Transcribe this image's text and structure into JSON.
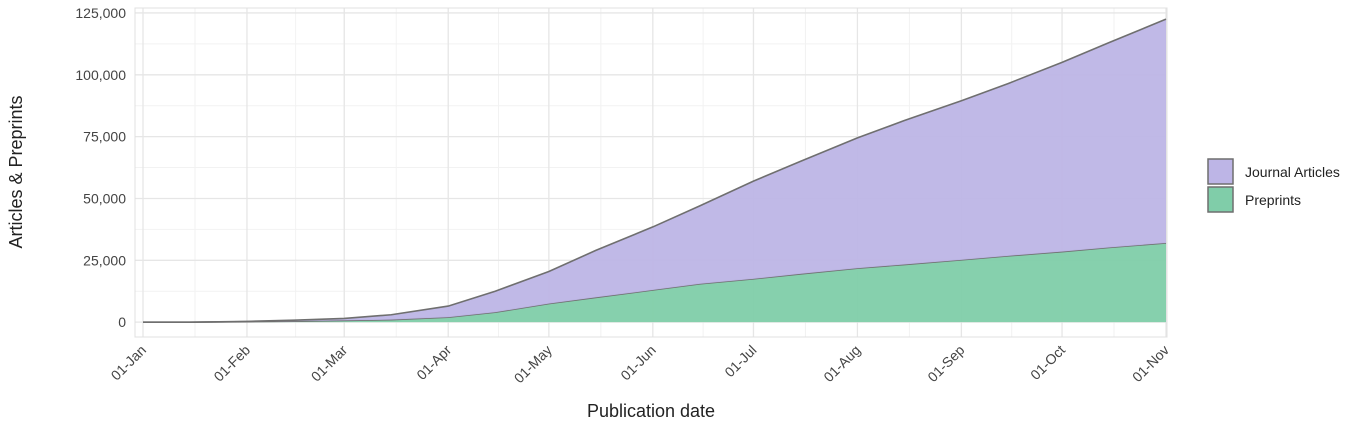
{
  "chart_data": {
    "type": "stacked_area",
    "y_label": "Articles & Preprints",
    "x_label": "Publication date",
    "x": [
      "01-Jan",
      "15-Jan",
      "01-Feb",
      "15-Feb",
      "01-Mar",
      "15-Mar",
      "01-Apr",
      "15-Apr",
      "01-May",
      "15-May",
      "01-Jun",
      "15-Jun",
      "01-Jul",
      "15-Jul",
      "01-Aug",
      "15-Aug",
      "01-Sep",
      "15-Sep",
      "01-Oct",
      "15-Oct",
      "01-Nov"
    ],
    "series": [
      {
        "name": "Journal Articles",
        "color": "#bdb5e6",
        "values": [
          0,
          0,
          100,
          400,
          800,
          2000,
          4500,
          8500,
          13000,
          19000,
          25500,
          31500,
          39500,
          45500,
          52700,
          58200,
          64300,
          69700,
          76500,
          82800,
          90500
        ]
      },
      {
        "name": "Preprints",
        "color": "#80cda9",
        "values": [
          0,
          0,
          200,
          400,
          700,
          1000,
          2000,
          4000,
          7500,
          10000,
          13000,
          15500,
          17500,
          19500,
          21800,
          23300,
          25200,
          26800,
          28500,
          30200,
          32000
        ]
      }
    ],
    "xlim": [
      "01-Jan",
      "01-Nov"
    ],
    "xticks": [
      "01-Jan",
      "01-Feb",
      "01-Mar",
      "01-Apr",
      "01-May",
      "01-Jun",
      "01-Jul",
      "01-Aug",
      "01-Sep",
      "01-Oct",
      "01-Nov"
    ],
    "ylim": [
      -6000,
      127000
    ],
    "yticks": [
      0,
      {
        "value": 25000,
        "label": "25,000"
      },
      {
        "value": 50000,
        "label": "50,000"
      },
      {
        "value": 75000,
        "label": "75,000"
      },
      {
        "value": 100000,
        "label": "100,000"
      },
      {
        "value": 125000,
        "label": "125,000"
      }
    ],
    "grid": true,
    "legend": "right"
  }
}
